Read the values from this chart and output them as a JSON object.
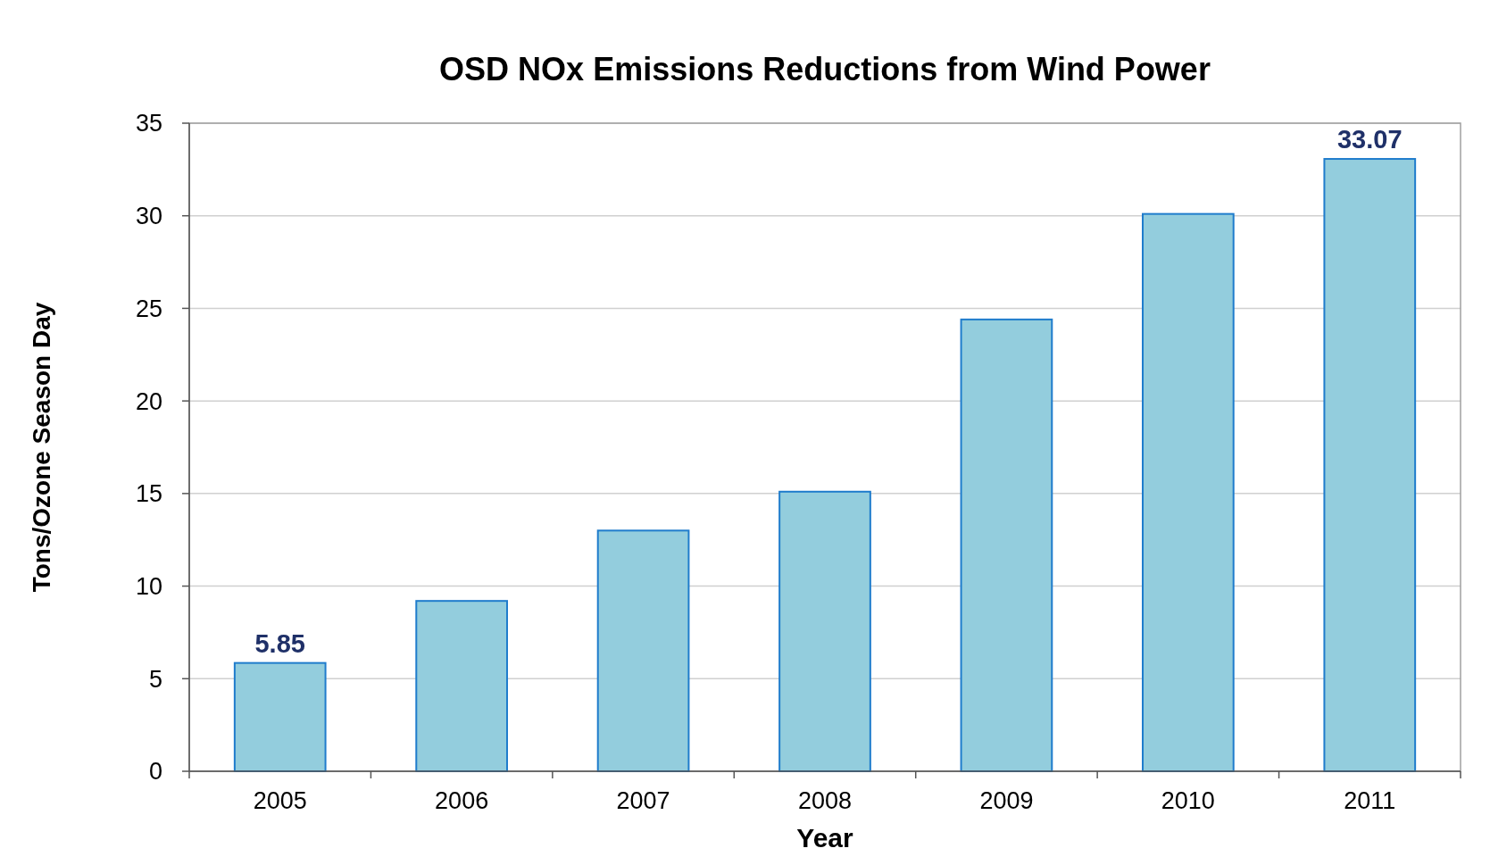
{
  "chart_data": {
    "type": "bar",
    "title": "OSD NOx Emissions Reductions from Wind Power",
    "xlabel": "Year",
    "ylabel": "Tons/Ozone Season Day",
    "categories": [
      "2005",
      "2006",
      "2007",
      "2008",
      "2009",
      "2010",
      "2011"
    ],
    "values": [
      5.85,
      9.2,
      13.0,
      15.1,
      24.4,
      30.1,
      33.07
    ],
    "value_labels": [
      "5.85",
      null,
      null,
      null,
      null,
      null,
      "33.07"
    ],
    "color": "#93cddd",
    "ylim": [
      0,
      35
    ],
    "yticks": [
      0,
      5,
      10,
      15,
      20,
      25,
      30,
      35
    ],
    "grid": "y"
  }
}
